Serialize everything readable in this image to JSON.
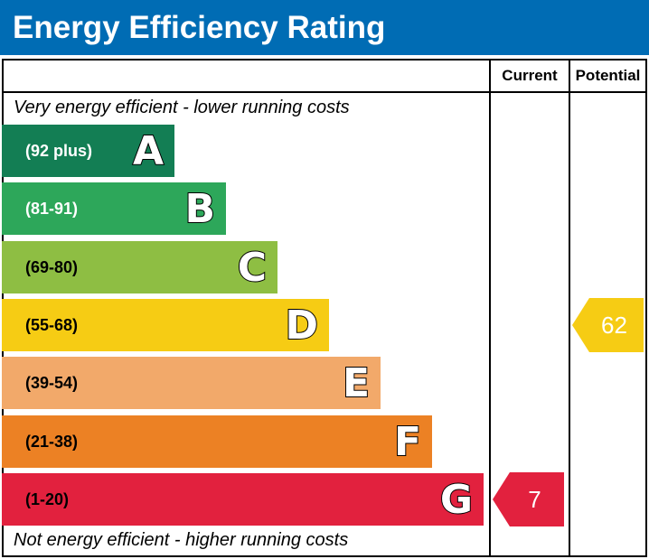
{
  "title": "Energy Efficiency Rating",
  "columns": {
    "current": "Current",
    "potential": "Potential"
  },
  "top_caption": "Very energy efficient - lower running costs",
  "bottom_caption": "Not energy efficient - higher running costs",
  "chart_data": {
    "type": "bar",
    "categories": [
      "A",
      "B",
      "C",
      "D",
      "E",
      "F",
      "G"
    ],
    "ranges": [
      "(92 plus)",
      "(81-91)",
      "(69-80)",
      "(55-68)",
      "(39-54)",
      "(21-38)",
      "(1-20)"
    ],
    "colors": [
      "#137e54",
      "#2da75a",
      "#8ebe43",
      "#f6cc14",
      "#f2a96a",
      "#ec8124",
      "#e2213e"
    ],
    "range_text_colors": [
      "#ffffff",
      "#ffffff",
      "#000000",
      "#000000",
      "#000000",
      "#000000",
      "#000000"
    ],
    "current": {
      "value": "7",
      "band": "G",
      "color": "#e2213e"
    },
    "potential": {
      "value": "62",
      "band": "D",
      "color": "#f6cc14"
    }
  }
}
